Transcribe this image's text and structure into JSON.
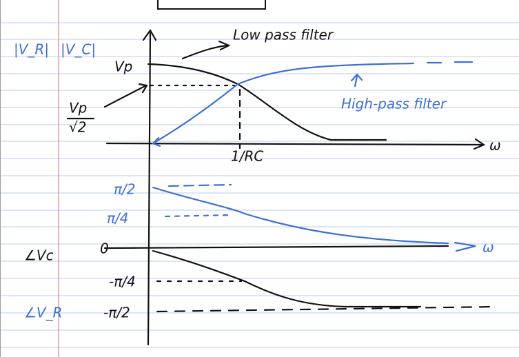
{
  "magnitude_plot": {
    "label_r": "|V_R|",
    "label_c": "|V_C|",
    "peak": "Vp",
    "half_power_num": "Vp",
    "half_power_den": "√2",
    "low_pass": "Low pass filter",
    "high_pass": "High-pass filter",
    "cutoff": "1/RC",
    "x_axis": "ω"
  },
  "phase_plot": {
    "tick_pi_2": "π/2",
    "tick_pi_4": "π/4",
    "zero": "0",
    "tick_neg_pi_4": "-π/4",
    "tick_neg_pi_2": "-π/2",
    "x_axis": "ω",
    "label_c": "∠Vc",
    "label_r": "∠V_R"
  }
}
